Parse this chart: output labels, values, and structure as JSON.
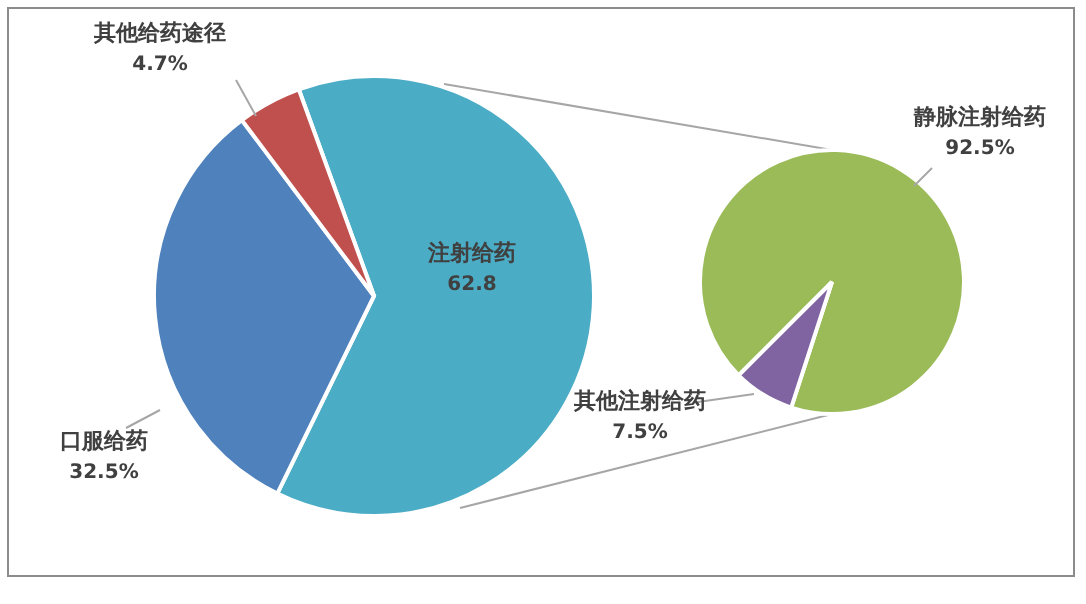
{
  "chart_data": [
    {
      "type": "pie",
      "categories": [
        "注射给药",
        "口服给药",
        "其他给药途径"
      ],
      "values": [
        62.8,
        32.5,
        4.7
      ],
      "colors": [
        "#4bacc6",
        "#4f81bd",
        "#c0504d"
      ],
      "value_labels": [
        "62.8",
        "32.5%",
        "4.7%"
      ]
    },
    {
      "type": "pie",
      "categories": [
        "静脉注射给药",
        "其他注射给药"
      ],
      "values": [
        92.5,
        7.5
      ],
      "colors": [
        "#9bbb59",
        "#8064a2"
      ],
      "value_labels": [
        "92.5%",
        "7.5%"
      ]
    }
  ]
}
